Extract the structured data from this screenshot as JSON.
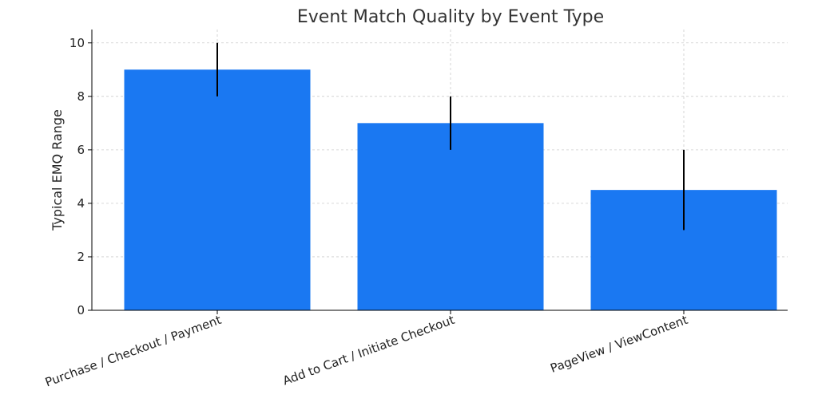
{
  "chart_data": {
    "type": "bar",
    "title": "Event Match Quality by Event Type",
    "xlabel": "",
    "ylabel": "Typical EMQ Range",
    "categories": [
      "Purchase / Checkout / Payment",
      "Add to Cart / Initiate Checkout",
      "PageView / ViewContent"
    ],
    "values": [
      9,
      7,
      4.5
    ],
    "error_low": [
      8,
      6,
      3
    ],
    "error_high": [
      10,
      8,
      6
    ],
    "ylim": [
      0,
      10.5
    ],
    "yticks": [
      0,
      2,
      4,
      6,
      8,
      10
    ],
    "grid": true,
    "legend": "none",
    "colors": {
      "bar": "#1a78f2",
      "error_bar": "#000000",
      "grid": "#cccccc",
      "axis": "#000000",
      "title": "#333333"
    }
  }
}
